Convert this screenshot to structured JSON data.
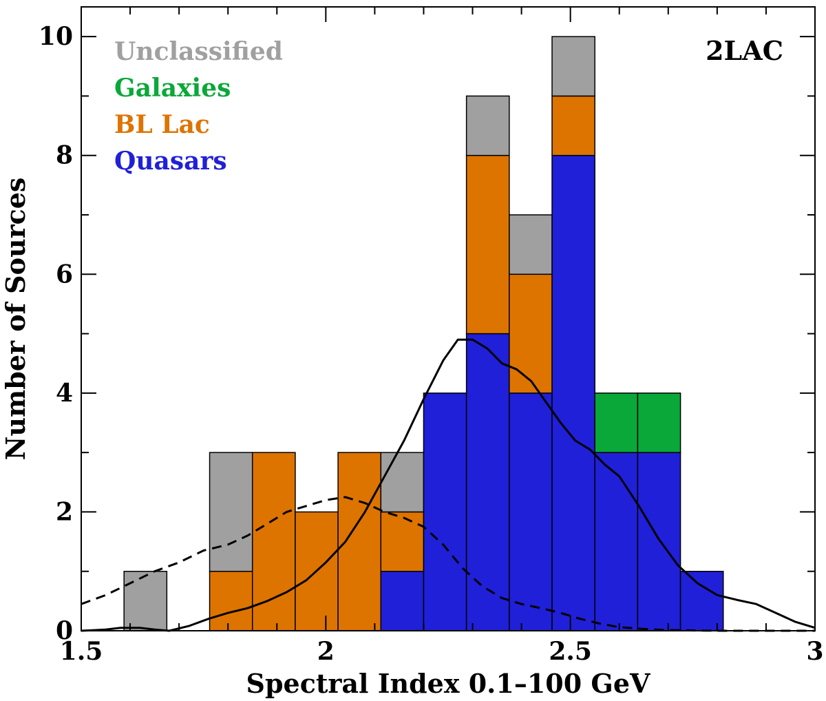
{
  "chart_data": {
    "type": "bar",
    "stacked": true,
    "title": "2LAC",
    "xlabel": "Spectral Index 0.1–100 GeV",
    "ylabel": "Number of Sources",
    "xlim": [
      1.5,
      3.0
    ],
    "ylim": [
      0,
      10.5
    ],
    "bin_width": 0.0875,
    "x_ticks": [
      {
        "v": 1.5,
        "label": "1.5"
      },
      {
        "v": 2.0,
        "label": "2"
      },
      {
        "v": 2.5,
        "label": "2.5"
      },
      {
        "v": 3.0,
        "label": "3"
      }
    ],
    "y_ticks": [
      {
        "v": 0,
        "label": "0"
      },
      {
        "v": 2,
        "label": "2"
      },
      {
        "v": 4,
        "label": "4"
      },
      {
        "v": 6,
        "label": "6"
      },
      {
        "v": 8,
        "label": "8"
      },
      {
        "v": 10,
        "label": "10"
      }
    ],
    "bin_starts": [
      1.5875,
      1.675,
      1.7625,
      1.85,
      1.9375,
      2.025,
      2.1125,
      2.2,
      2.2875,
      2.375,
      2.4625,
      2.55,
      2.6375,
      2.725
    ],
    "series": [
      {
        "name": "Quasars",
        "color": "#2020d8",
        "values": [
          0,
          0,
          0,
          0,
          0,
          0,
          1,
          4,
          5,
          4,
          8,
          3,
          3,
          1
        ]
      },
      {
        "name": "BL Lac",
        "color": "#dd7400",
        "values": [
          0,
          0,
          1,
          3,
          2,
          3,
          1,
          0,
          3,
          2,
          1,
          0,
          0,
          0
        ]
      },
      {
        "name": "Galaxies",
        "color": "#0aa838",
        "values": [
          0,
          0,
          0,
          0,
          0,
          0,
          0,
          0,
          0,
          0,
          0,
          1,
          1,
          0
        ]
      },
      {
        "name": "Unclassified",
        "color": "#a0a0a0",
        "values": [
          1,
          0,
          2,
          0,
          0,
          0,
          1,
          0,
          1,
          1,
          1,
          0,
          0,
          0
        ]
      }
    ],
    "legend_order": [
      "Unclassified",
      "Galaxies",
      "BL Lac",
      "Quasars"
    ],
    "legend_position": "top-left",
    "curves": [
      {
        "name": "solid-kde",
        "style": "solid",
        "x": [
          1.5,
          1.55,
          1.58,
          1.62,
          1.65,
          1.68,
          1.72,
          1.76,
          1.8,
          1.84,
          1.88,
          1.92,
          1.96,
          2.0,
          2.04,
          2.08,
          2.12,
          2.16,
          2.2,
          2.24,
          2.27,
          2.3,
          2.33,
          2.36,
          2.39,
          2.42,
          2.45,
          2.48,
          2.51,
          2.54,
          2.57,
          2.6,
          2.64,
          2.68,
          2.72,
          2.76,
          2.8,
          2.84,
          2.88,
          2.92,
          2.96,
          3.0
        ],
        "y": [
          0.0,
          0.02,
          0.05,
          0.05,
          0.02,
          0.0,
          0.08,
          0.2,
          0.3,
          0.38,
          0.5,
          0.65,
          0.85,
          1.15,
          1.5,
          2.0,
          2.6,
          3.2,
          3.9,
          4.55,
          4.9,
          4.9,
          4.75,
          4.5,
          4.4,
          4.2,
          3.85,
          3.5,
          3.2,
          3.05,
          2.8,
          2.6,
          2.1,
          1.55,
          1.1,
          0.8,
          0.6,
          0.52,
          0.45,
          0.3,
          0.15,
          0.05
        ]
      },
      {
        "name": "dashed-kde",
        "style": "dashed",
        "x": [
          1.5,
          1.55,
          1.6,
          1.65,
          1.7,
          1.75,
          1.8,
          1.84,
          1.88,
          1.92,
          1.96,
          2.0,
          2.04,
          2.08,
          2.12,
          2.16,
          2.2,
          2.24,
          2.28,
          2.32,
          2.36,
          2.4,
          2.44,
          2.48,
          2.52,
          2.56,
          2.6,
          2.65,
          2.7,
          2.8,
          2.9,
          3.0
        ],
        "y": [
          0.45,
          0.6,
          0.8,
          1.0,
          1.15,
          1.35,
          1.45,
          1.6,
          1.8,
          2.0,
          2.1,
          2.2,
          2.25,
          2.15,
          2.0,
          1.9,
          1.75,
          1.45,
          1.05,
          0.75,
          0.55,
          0.45,
          0.38,
          0.3,
          0.2,
          0.12,
          0.06,
          0.03,
          0.01,
          0.0,
          0.0,
          0.0
        ]
      }
    ]
  }
}
